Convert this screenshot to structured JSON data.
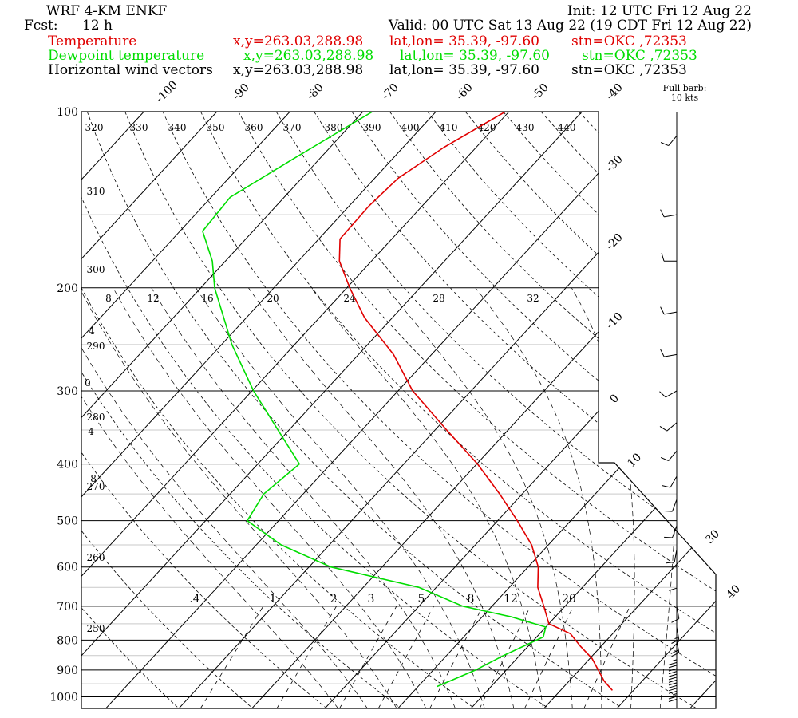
{
  "header": {
    "model": "WRF 4-KM ENKF",
    "init": "Init: 12 UTC Fri 12 Aug 22",
    "fcst_label": "Fcst:",
    "fcst_value": "12 h",
    "valid": "Valid: 00 UTC Sat 13 Aug 22 (19 CDT Fri 12 Aug 22)"
  },
  "legend": [
    {
      "label": "Temperature",
      "coords": "x,y=263.03,288.98",
      "latlon": "lat,lon= 35.39, -97.60",
      "stn": "stn=OKC ,72353",
      "color": "#e00000"
    },
    {
      "label": "Dewpoint temperature",
      "coords": "x,y=263.03,288.98",
      "latlon": "lat,lon= 35.39, -97.60",
      "stn": "stn=OKC ,72353",
      "color": "#00dd00"
    },
    {
      "label": "Horizontal wind vectors",
      "coords": "x,y=263.03,288.98",
      "latlon": "lat,lon= 35.39, -97.60",
      "stn": "stn=OKC ,72353",
      "color": "#000000"
    }
  ],
  "barb_note": {
    "line1": "Full barb:",
    "line2": "10 kts"
  },
  "chart_data": {
    "type": "skew-t",
    "pressure_levels": [
      100,
      200,
      300,
      400,
      500,
      600,
      700,
      800,
      900,
      1000
    ],
    "isotherm_labels": [
      "-100",
      "-90",
      "-80",
      "-70",
      "-60",
      "-50",
      "-40",
      "-30",
      "-20",
      "-10",
      "0",
      "10",
      "30",
      "40"
    ],
    "theta_labels": [
      "320",
      "330",
      "340",
      "350",
      "360",
      "370",
      "380",
      "390",
      "400",
      "410",
      "420",
      "430",
      "440",
      "310",
      "300",
      "290",
      "280",
      "270",
      "260",
      "250"
    ],
    "theta_e_labels": [
      "8",
      "12",
      "16",
      "20",
      "24",
      "28",
      "32",
      "4",
      "0",
      "-4",
      "-8"
    ],
    "mixing_ratio_labels": [
      ".4",
      "1",
      "2",
      "3",
      "5",
      "8",
      "12",
      "20"
    ],
    "series": [
      {
        "name": "Temperature",
        "color": "#e00000",
        "points": [
          [
            100,
            -60.5
          ],
          [
            115,
            -64.4
          ],
          [
            130,
            -66.8
          ],
          [
            145,
            -67.3
          ],
          [
            165,
            -67.1
          ],
          [
            180,
            -64.4
          ],
          [
            200,
            -59.6
          ],
          [
            225,
            -53.8
          ],
          [
            260,
            -45.2
          ],
          [
            300,
            -38.0
          ],
          [
            350,
            -28.4
          ],
          [
            400,
            -19.9
          ],
          [
            450,
            -13.1
          ],
          [
            500,
            -7.3
          ],
          [
            550,
            -2.3
          ],
          [
            600,
            1.4
          ],
          [
            650,
            3.9
          ],
          [
            700,
            7.1
          ],
          [
            750,
            10.0
          ],
          [
            780,
            14.2
          ],
          [
            820,
            17.2
          ],
          [
            860,
            20.3
          ],
          [
            900,
            22.6
          ],
          [
            940,
            24.8
          ],
          [
            975,
            27.1
          ]
        ]
      },
      {
        "name": "Dewpoint temperature",
        "color": "#00dd00",
        "points": [
          [
            100,
            -78.7
          ],
          [
            120,
            -83.5
          ],
          [
            140,
            -87.4
          ],
          [
            160,
            -86.9
          ],
          [
            180,
            -81.8
          ],
          [
            200,
            -78.1
          ],
          [
            250,
            -68.6
          ],
          [
            300,
            -59.8
          ],
          [
            350,
            -51.5
          ],
          [
            400,
            -44.3
          ],
          [
            450,
            -45.4
          ],
          [
            500,
            -44.3
          ],
          [
            550,
            -36.6
          ],
          [
            600,
            -27.0
          ],
          [
            650,
            -12.4
          ],
          [
            700,
            -4.0
          ],
          [
            730,
            4.0
          ],
          [
            760,
            10.0
          ],
          [
            790,
            10.9
          ],
          [
            850,
            7.8
          ],
          [
            900,
            5.8
          ],
          [
            960,
            2.6
          ]
        ]
      }
    ],
    "wind_barbs": [
      {
        "p": 110,
        "speed_kts": 10,
        "dir_deg": 220
      },
      {
        "p": 150,
        "speed_kts": 10,
        "dir_deg": 260
      },
      {
        "p": 180,
        "speed_kts": 10,
        "dir_deg": 270
      },
      {
        "p": 220,
        "speed_kts": 10,
        "dir_deg": 260
      },
      {
        "p": 260,
        "speed_kts": 10,
        "dir_deg": 260
      },
      {
        "p": 300,
        "speed_kts": 10,
        "dir_deg": 240
      },
      {
        "p": 340,
        "speed_kts": 10,
        "dir_deg": 230
      },
      {
        "p": 380,
        "speed_kts": 10,
        "dir_deg": 220
      },
      {
        "p": 420,
        "speed_kts": 10,
        "dir_deg": 210
      },
      {
        "p": 460,
        "speed_kts": 10,
        "dir_deg": 200
      },
      {
        "p": 510,
        "speed_kts": 10,
        "dir_deg": 200
      },
      {
        "p": 560,
        "speed_kts": 10,
        "dir_deg": 190
      },
      {
        "p": 620,
        "speed_kts": 10,
        "dir_deg": 180
      },
      {
        "p": 700,
        "speed_kts": 10,
        "dir_deg": 170
      },
      {
        "p": 760,
        "speed_kts": 15,
        "dir_deg": 170
      },
      {
        "p": 800,
        "speed_kts": 20,
        "dir_deg": 170
      },
      {
        "p": 840,
        "speed_kts": 25,
        "dir_deg": 180
      },
      {
        "p": 870,
        "speed_kts": 30,
        "dir_deg": 180
      },
      {
        "p": 900,
        "speed_kts": 30,
        "dir_deg": 180
      },
      {
        "p": 930,
        "speed_kts": 30,
        "dir_deg": 180
      },
      {
        "p": 960,
        "speed_kts": 25,
        "dir_deg": 180
      }
    ]
  }
}
